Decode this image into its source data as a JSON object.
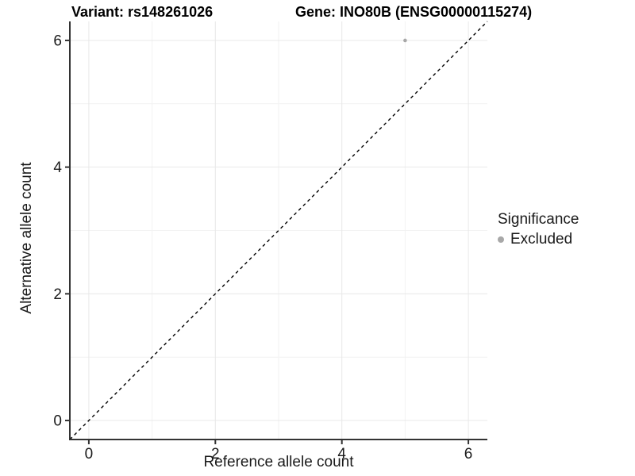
{
  "titles": {
    "variant": "Variant: rs148261026",
    "gene": "Gene: INO80B (ENSG00000115274)"
  },
  "axes": {
    "x_label": "Reference allele count",
    "y_label": "Alternative allele count"
  },
  "legend": {
    "title": "Significance",
    "items": [
      {
        "label": "Excluded",
        "color": "#a8a8a8"
      }
    ]
  },
  "chart_data": {
    "type": "scatter",
    "title": "Variant: rs148261026   Gene: INO80B (ENSG00000115274)",
    "xlabel": "Reference allele count",
    "ylabel": "Alternative allele count",
    "xlim": [
      -0.3,
      6.3
    ],
    "ylim": [
      -0.3,
      6.3
    ],
    "x_ticks": [
      0,
      2,
      4,
      6
    ],
    "y_ticks": [
      0,
      2,
      4,
      6
    ],
    "x_minor_ticks": [
      1,
      3,
      5
    ],
    "y_minor_ticks": [
      1,
      3,
      5
    ],
    "grid": true,
    "legend_position": "right",
    "series": [
      {
        "name": "Excluded",
        "color": "#a8a8a8",
        "points": [
          {
            "x": 5,
            "y": 6
          }
        ]
      }
    ],
    "reference_line": {
      "kind": "identity",
      "x1": -0.3,
      "y1": -0.3,
      "x2": 6.3,
      "y2": 6.3,
      "style": "dashed",
      "color": "#000000"
    },
    "style": {
      "panel_background": "#ffffff",
      "major_grid_color": "#e8e8e8",
      "minor_grid_color": "#f2f2f2",
      "axis_line_color": "#333333",
      "tick_label_color": "#1a1a1a",
      "point_radius": 2.3,
      "tick_font_size": 19
    }
  }
}
